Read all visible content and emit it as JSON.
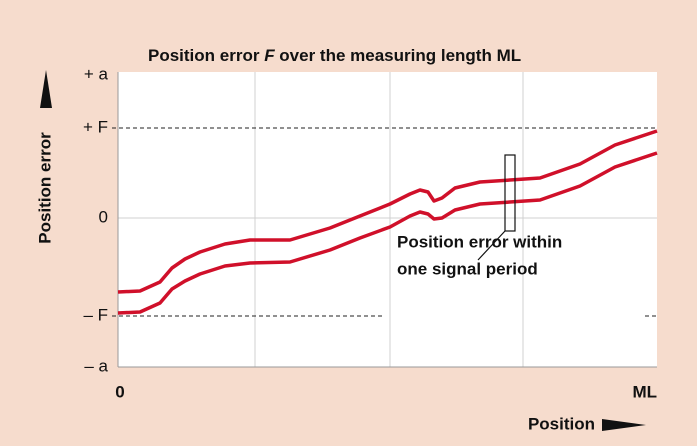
{
  "title": {
    "before": "Position error ",
    "symbol": "F",
    "after": " over the measuring length ML"
  },
  "y_axis": {
    "label": "Position error",
    "ticks": [
      "+ a",
      "+ F",
      "0",
      "– F",
      "– a"
    ]
  },
  "x_axis": {
    "label": "Position",
    "ticks": [
      "0",
      "ML"
    ]
  },
  "annotation": [
    "Position error within",
    "one signal period"
  ]
}
